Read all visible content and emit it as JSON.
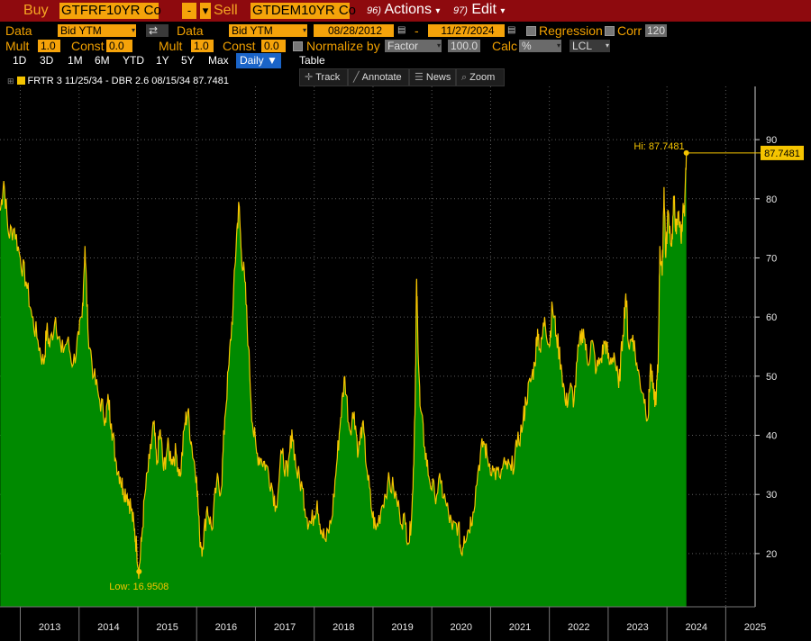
{
  "top_bar": {
    "buy_label": "Buy",
    "buy_ticker": "GTFRF10YR Co",
    "minus": "-",
    "sell_label": "Sell",
    "sell_ticker": "GTDEM10YR Co",
    "actions_num": "96)",
    "actions_label": "Actions",
    "edit_num": "97)",
    "edit_label": "Edit"
  },
  "row1": {
    "data_label_1": "Data",
    "data_value_1": "Bid YTM",
    "data_label_2": "Data",
    "data_value_2": "Bid YTM",
    "start_date": "08/28/2012",
    "dash": "-",
    "end_date": "11/27/2024",
    "regression_label": "Regression",
    "corr_label": "Corr",
    "corr_value": "120"
  },
  "row2": {
    "mult_label_1": "Mult",
    "mult_value_1": "1.0",
    "const_label_1": "Const",
    "const_value_1": "0.0",
    "mult_label_2": "Mult",
    "mult_value_2": "1.0",
    "const_label_2": "Const",
    "const_value_2": "0.0",
    "normalize_label": "Normalize by",
    "normalize_value": "Factor",
    "factor_value": "100.0",
    "calc_label": "Calc",
    "calc_value": "%",
    "lcl_value": "LCL"
  },
  "range_buttons": [
    "1D",
    "3D",
    "1M",
    "6M",
    "YTD",
    "1Y",
    "5Y",
    "Max"
  ],
  "frequency": "Daily",
  "table_label": "Table",
  "tools": {
    "track": "Track",
    "annotate": "Annotate",
    "news": "News",
    "zoom": "Zoom"
  },
  "legend_text": "FRTR 3 11/25/34 - DBR 2.6 08/15/34 87.7481",
  "colors": {
    "area": "#008a00",
    "line": "#f5c400",
    "background": "#000000",
    "accent": "#f5a30a"
  },
  "chart_data": {
    "type": "area",
    "ylim": [
      11,
      99
    ],
    "yticks": [
      20,
      30,
      40,
      50,
      60,
      70,
      80,
      90
    ],
    "x_labels": [
      "2013",
      "2014",
      "2015",
      "2016",
      "2017",
      "2018",
      "2019",
      "2020",
      "2021",
      "2022",
      "2023",
      "2024",
      "2025"
    ],
    "x_range": [
      2012.655,
      2025.5
    ],
    "points": [
      [
        2012.66,
        78
      ],
      [
        2012.72,
        83
      ],
      [
        2012.8,
        74
      ],
      [
        2012.9,
        75
      ],
      [
        2013.0,
        70
      ],
      [
        2013.1,
        66
      ],
      [
        2013.2,
        60
      ],
      [
        2013.3,
        56
      ],
      [
        2013.4,
        52
      ],
      [
        2013.45,
        58
      ],
      [
        2013.5,
        55
      ],
      [
        2013.6,
        60
      ],
      [
        2013.7,
        54
      ],
      [
        2013.8,
        56
      ],
      [
        2013.9,
        52
      ],
      [
        2014.0,
        57
      ],
      [
        2014.05,
        60
      ],
      [
        2014.1,
        72
      ],
      [
        2014.15,
        58
      ],
      [
        2014.25,
        50
      ],
      [
        2014.35,
        46
      ],
      [
        2014.45,
        43
      ],
      [
        2014.5,
        46
      ],
      [
        2014.55,
        42
      ],
      [
        2014.62,
        36
      ],
      [
        2014.7,
        33
      ],
      [
        2014.75,
        31
      ],
      [
        2014.82,
        30
      ],
      [
        2014.88,
        28
      ],
      [
        2014.94,
        24
      ],
      [
        2014.98,
        21
      ],
      [
        2015.02,
        16.9508
      ],
      [
        2015.06,
        22
      ],
      [
        2015.12,
        30
      ],
      [
        2015.2,
        36
      ],
      [
        2015.27,
        42
      ],
      [
        2015.32,
        35
      ],
      [
        2015.38,
        41
      ],
      [
        2015.44,
        34
      ],
      [
        2015.5,
        38
      ],
      [
        2015.58,
        36
      ],
      [
        2015.65,
        37
      ],
      [
        2015.72,
        33
      ],
      [
        2015.8,
        42
      ],
      [
        2015.85,
        44
      ],
      [
        2015.92,
        38
      ],
      [
        2016.0,
        33
      ],
      [
        2016.05,
        23
      ],
      [
        2016.1,
        21
      ],
      [
        2016.18,
        28
      ],
      [
        2016.26,
        24
      ],
      [
        2016.34,
        32
      ],
      [
        2016.42,
        31
      ],
      [
        2016.48,
        43
      ],
      [
        2016.55,
        52
      ],
      [
        2016.62,
        62
      ],
      [
        2016.68,
        74
      ],
      [
        2016.72,
        79
      ],
      [
        2016.76,
        71
      ],
      [
        2016.82,
        66
      ],
      [
        2016.88,
        55
      ],
      [
        2016.95,
        42
      ],
      [
        2017.02,
        37
      ],
      [
        2017.1,
        36
      ],
      [
        2017.18,
        35
      ],
      [
        2017.27,
        32
      ],
      [
        2017.35,
        28
      ],
      [
        2017.45,
        37
      ],
      [
        2017.55,
        33
      ],
      [
        2017.62,
        41
      ],
      [
        2017.7,
        34
      ],
      [
        2017.8,
        31
      ],
      [
        2017.88,
        26
      ],
      [
        2017.95,
        25
      ],
      [
        2018.05,
        29
      ],
      [
        2018.12,
        24
      ],
      [
        2018.2,
        22
      ],
      [
        2018.3,
        26
      ],
      [
        2018.38,
        35
      ],
      [
        2018.45,
        43
      ],
      [
        2018.52,
        50
      ],
      [
        2018.6,
        41
      ],
      [
        2018.68,
        44
      ],
      [
        2018.75,
        37
      ],
      [
        2018.82,
        42
      ],
      [
        2018.9,
        34
      ],
      [
        2018.98,
        27
      ],
      [
        2019.05,
        24
      ],
      [
        2019.15,
        28
      ],
      [
        2019.25,
        32
      ],
      [
        2019.35,
        31
      ],
      [
        2019.45,
        27
      ],
      [
        2019.55,
        25
      ],
      [
        2019.62,
        22
      ],
      [
        2019.68,
        31
      ],
      [
        2019.72,
        48
      ],
      [
        2019.74,
        66
      ],
      [
        2019.76,
        58
      ],
      [
        2019.8,
        45
      ],
      [
        2019.88,
        38
      ],
      [
        2019.95,
        33
      ],
      [
        2020.05,
        30
      ],
      [
        2020.15,
        32
      ],
      [
        2020.25,
        28
      ],
      [
        2020.35,
        24
      ],
      [
        2020.45,
        25
      ],
      [
        2020.5,
        20
      ],
      [
        2020.55,
        23
      ],
      [
        2020.62,
        24
      ],
      [
        2020.7,
        27
      ],
      [
        2020.8,
        35
      ],
      [
        2020.88,
        39
      ],
      [
        2020.95,
        36
      ],
      [
        2021.05,
        34
      ],
      [
        2021.15,
        33
      ],
      [
        2021.25,
        35
      ],
      [
        2021.35,
        34
      ],
      [
        2021.45,
        38
      ],
      [
        2021.55,
        42
      ],
      [
        2021.6,
        46
      ],
      [
        2021.68,
        49
      ],
      [
        2021.75,
        52
      ],
      [
        2021.8,
        58
      ],
      [
        2021.85,
        54
      ],
      [
        2021.92,
        60
      ],
      [
        2022.0,
        55
      ],
      [
        2022.05,
        62
      ],
      [
        2022.12,
        57
      ],
      [
        2022.2,
        52
      ],
      [
        2022.28,
        45
      ],
      [
        2022.35,
        48
      ],
      [
        2022.42,
        46
      ],
      [
        2022.5,
        55
      ],
      [
        2022.58,
        58
      ],
      [
        2022.65,
        52
      ],
      [
        2022.72,
        56
      ],
      [
        2022.8,
        51
      ],
      [
        2022.88,
        53
      ],
      [
        2022.95,
        56
      ],
      [
        2023.02,
        52
      ],
      [
        2023.1,
        54
      ],
      [
        2023.18,
        48
      ],
      [
        2023.25,
        57
      ],
      [
        2023.3,
        64
      ],
      [
        2023.35,
        55
      ],
      [
        2023.42,
        57
      ],
      [
        2023.5,
        51
      ],
      [
        2023.6,
        47
      ],
      [
        2023.68,
        43
      ],
      [
        2023.72,
        52
      ],
      [
        2023.78,
        46
      ],
      [
        2023.82,
        47
      ],
      [
        2023.85,
        52
      ],
      [
        2023.88,
        72
      ],
      [
        2023.92,
        67
      ],
      [
        2023.95,
        82
      ],
      [
        2023.98,
        70
      ],
      [
        2024.02,
        78
      ],
      [
        2024.08,
        72
      ],
      [
        2024.12,
        80
      ],
      [
        2024.16,
        74
      ],
      [
        2024.2,
        78
      ],
      [
        2024.24,
        73
      ],
      [
        2024.27,
        78
      ],
      [
        2024.3,
        77
      ],
      [
        2024.33,
        87.7481
      ]
    ],
    "annotations": {
      "low_label": "Low: 16.9508",
      "low_point": [
        2015.02,
        16.9508
      ],
      "high_label": "Hi: 87.7481",
      "last_value": "87.7481",
      "high_point": [
        2024.33,
        87.7481
      ]
    }
  }
}
